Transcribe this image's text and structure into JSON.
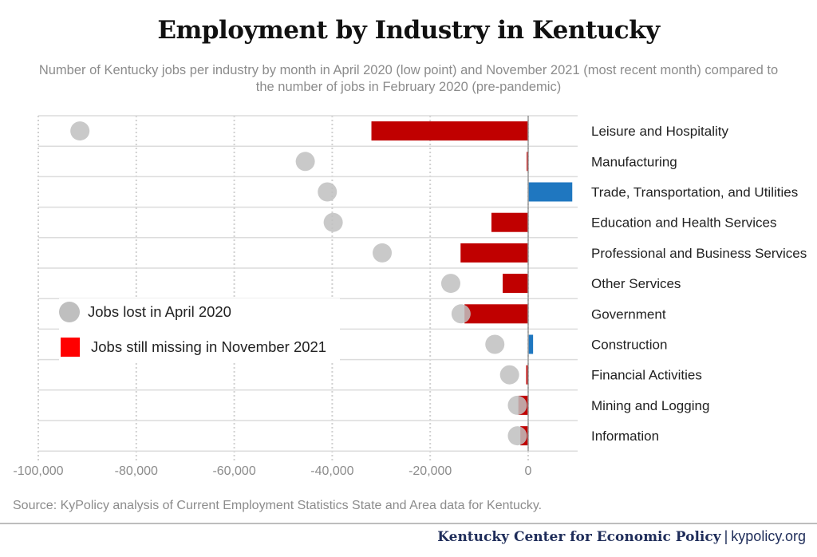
{
  "title": "Employment by Industry in Kentucky",
  "subtitle": "Number of Kentucky jobs per industry by month in April 2020 (low point) and November 2021 (most recent month) compared to the number of jobs in February 2020 (pre-pandemic)",
  "source": "Source: KyPolicy analysis of Current Employment Statistics State and Area data for Kentucky.",
  "footer": {
    "org": "Kentucky Center for Economic Policy",
    "separator": "|",
    "site": "kypolicy.org"
  },
  "legend": {
    "dot_label": "Jobs lost in April 2020",
    "bar_label": "Jobs still missing in November 2021"
  },
  "colors": {
    "dot": "#bfbfbf",
    "bar_negative": "#c00000",
    "bar_positive": "#1f77c0",
    "legend_square": "#ff0000"
  },
  "chart_data": {
    "type": "bar",
    "orientation": "horizontal",
    "categories": [
      "Leisure and Hospitality",
      "Manufacturing",
      "Trade, Transportation, and Utilities",
      "Education and Health Services",
      "Professional and Business Services",
      "Other Services",
      "Government",
      "Construction",
      "Financial Activities",
      "Mining and Logging",
      "Information"
    ],
    "series": [
      {
        "name": "Jobs lost in April 2020",
        "mark": "dot",
        "values": [
          -91500,
          -45500,
          -41000,
          -39800,
          -29800,
          -15800,
          -13700,
          -6800,
          -3800,
          -2200,
          -2200
        ]
      },
      {
        "name": "Jobs still missing in November 2021",
        "mark": "bar",
        "values": [
          -32000,
          -300,
          9000,
          -7500,
          -13800,
          -5200,
          -13000,
          1000,
          -400,
          -2000,
          -1600
        ]
      }
    ],
    "xlim": [
      -100000,
      10000
    ],
    "xticks": [
      -100000,
      -80000,
      -60000,
      -40000,
      -20000,
      0
    ],
    "xtick_labels": [
      "-100,000",
      "-80,000",
      "-60,000",
      "-40,000",
      "-20,000",
      "0"
    ],
    "grid": true,
    "legend_position": "left"
  }
}
